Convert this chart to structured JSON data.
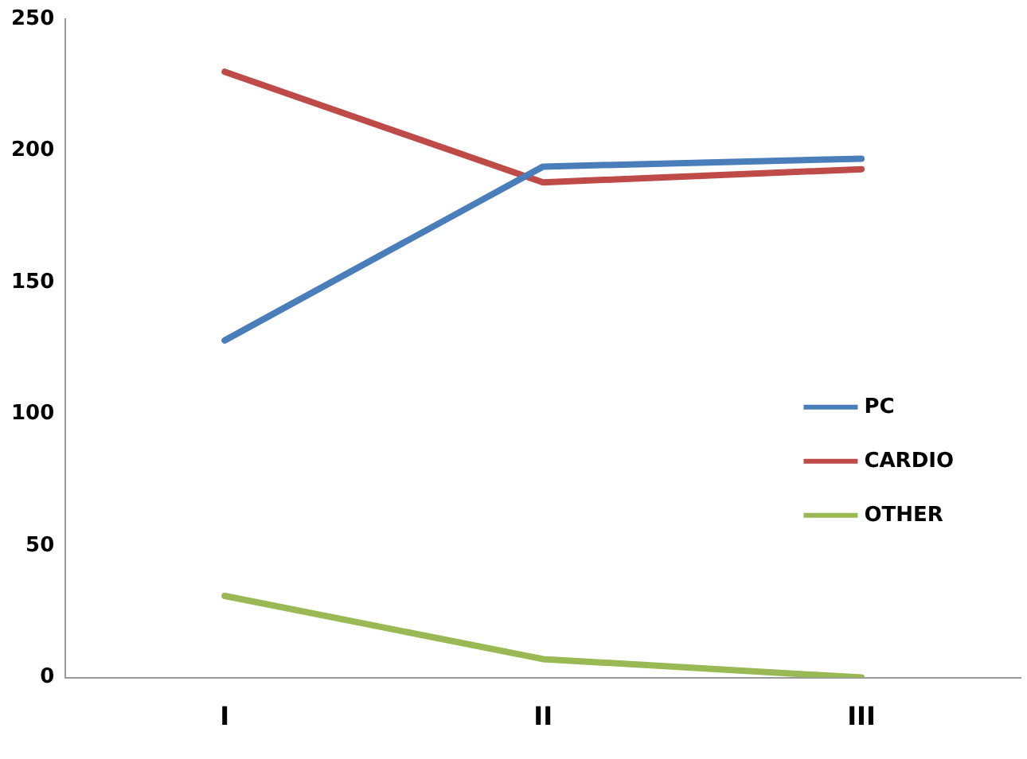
{
  "chart_data": {
    "type": "line",
    "categories": [
      "I",
      "II",
      "III"
    ],
    "series": [
      {
        "name": "PC",
        "color": "#4a7ebb",
        "values": [
          128,
          194,
          197
        ]
      },
      {
        "name": "CARDIO",
        "color": "#be4b48",
        "values": [
          230,
          188,
          193
        ]
      },
      {
        "name": "OTHER",
        "color": "#98b954",
        "values": [
          31,
          7,
          0
        ]
      }
    ],
    "ylim": [
      0,
      250
    ],
    "yticks": [
      0,
      50,
      100,
      150,
      200,
      250
    ],
    "grid": false,
    "legend": "right",
    "marker": "none"
  }
}
